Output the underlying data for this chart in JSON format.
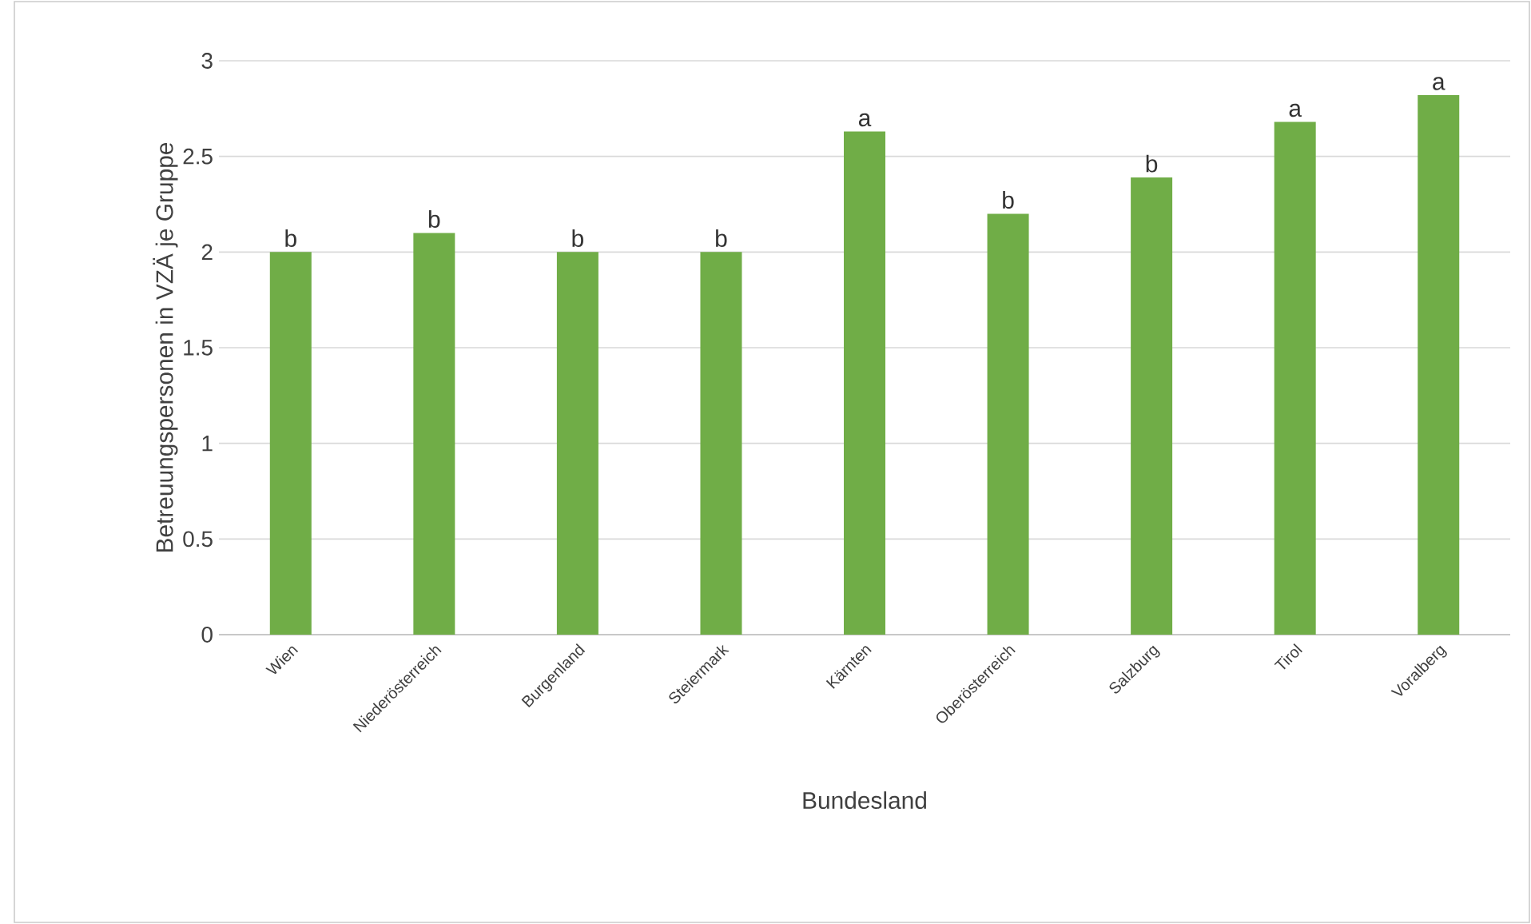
{
  "chart_data": {
    "type": "bar",
    "xlabel": "Bundesland",
    "ylabel": "Betreuungspersonen in VZÄ je Gruppe",
    "categories": [
      "Wien",
      "Niederösterreich",
      "Burgenland",
      "Steiermark",
      "Kärnten",
      "Oberösterreich",
      "Salzburg",
      "Tirol",
      "Voralberg"
    ],
    "values": [
      2.0,
      2.1,
      2.0,
      2.0,
      2.63,
      2.2,
      2.39,
      2.68,
      2.82
    ],
    "color": "#70ad47",
    "ylim": [
      0,
      3
    ],
    "yticks": [
      0,
      0.5,
      1,
      1.5,
      2,
      2.5,
      3
    ],
    "grid": "y",
    "annotations": [
      {
        "text": "b",
        "x": "Wien",
        "y": 2.0
      },
      {
        "text": "b",
        "x": "Niederösterreich",
        "y": 2.1
      },
      {
        "text": "b",
        "x": "Burgenland",
        "y": 2.0
      },
      {
        "text": "b",
        "x": "Steiermark",
        "y": 2.0
      },
      {
        "text": "a",
        "x": "Kärnten",
        "y": 2.63
      },
      {
        "text": "b",
        "x": "Oberösterreich",
        "y": 2.2
      },
      {
        "text": "b",
        "x": "Salzburg",
        "y": 2.39
      },
      {
        "text": "a",
        "x": "Tirol",
        "y": 2.68
      },
      {
        "text": "a",
        "x": "Voralberg",
        "y": 2.82
      }
    ]
  }
}
